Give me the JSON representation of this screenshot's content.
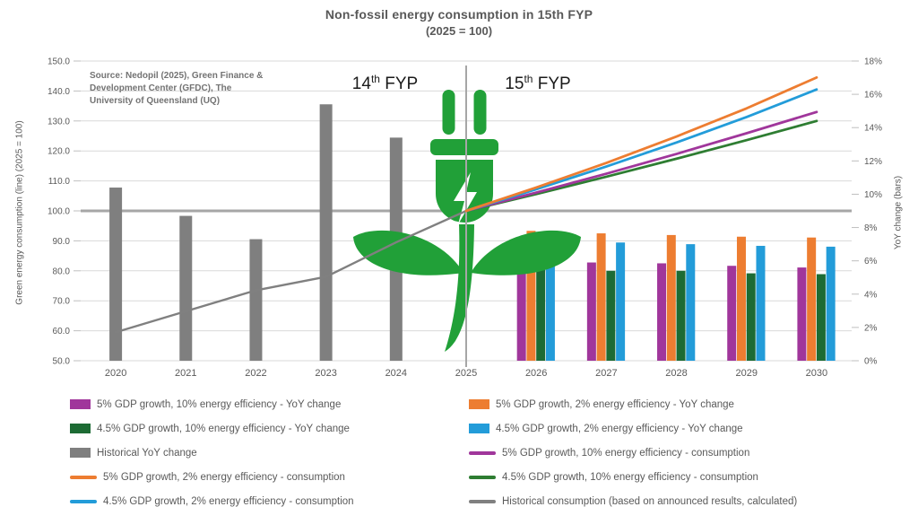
{
  "title": {
    "line1": "Non-fossil energy consumption in 15th FYP",
    "line2": "(2025 = 100)"
  },
  "source": {
    "line1": "Source: Nedopil (2025), Green Finance &",
    "line2": "Development Center (GFDC), The",
    "line3": "University of Queensland (UQ)"
  },
  "period_bands": {
    "left": {
      "num": "14",
      "sup": "th",
      "rest": " FYP"
    },
    "right": {
      "num": "15",
      "sup": "th",
      "rest": " FYP"
    }
  },
  "colors": {
    "purple": "#A0369B",
    "orange": "#ED7D31",
    "green_bar": "#1D6B34",
    "green_line": "#2E7D32",
    "blue": "#239CD9",
    "gray_bar": "#7F7F7F",
    "gray_line": "#808080",
    "grid": "#D9D9D9",
    "grid_emphasis": "#A6A6A6",
    "tick_mark": "#BFBFBF",
    "divider": "#A6A6A6",
    "plug_green": "#21A038",
    "text": "#595959",
    "fyp_text": "#1A1A1A",
    "band_fill": "#FFFFFF"
  },
  "legend": {
    "left": [
      {
        "marker": "square",
        "color": "#A0369B",
        "label": "5% GDP growth, 10% energy efficiency - YoY change"
      },
      {
        "marker": "square",
        "color": "#1D6B34",
        "label": "4.5% GDP growth, 10% energy efficiency  - YoY change"
      },
      {
        "marker": "square",
        "color": "#7F7F7F",
        "label": "Historical YoY change"
      },
      {
        "marker": "line",
        "color": "#ED7D31",
        "label": "5% GDP growth, 2% energy efficiency - consumption"
      },
      {
        "marker": "line",
        "color": "#239CD9",
        "label": "4.5% GDP growth,  2% energy efficiency - consumption"
      }
    ],
    "right": [
      {
        "marker": "square",
        "color": "#ED7D31",
        "label": "5% GDP growth, 2% energy efficiency - YoY change"
      },
      {
        "marker": "square",
        "color": "#239CD9",
        "label": "4.5% GDP growth, 2% energy efficiency - YoY change"
      },
      {
        "marker": "line",
        "color": "#A0369B",
        "label": "5% GDP growth, 10% energy efficiency - consumption"
      },
      {
        "marker": "line",
        "color": "#2E7D32",
        "label": "4.5% GDP growth, 10% energy efficiency - consumption"
      },
      {
        "marker": "line",
        "color": "#808080",
        "label": "Historical consumption (based on announced results, calculated)"
      }
    ]
  },
  "chart_data": {
    "type": "bar+line combo, dual axis",
    "title": "Non-fossil energy consumption in 15th FYP (2025 = 100)",
    "x_categories": [
      "2020",
      "2021",
      "2022",
      "2023",
      "2024",
      "2025",
      "2026",
      "2027",
      "2028",
      "2029",
      "2030"
    ],
    "left_axis": {
      "label": "Green energy consumption (line) (2025 = 100)",
      "range": [
        50,
        150
      ],
      "tick_values": [
        50,
        60,
        70,
        80,
        90,
        100,
        110,
        120,
        130,
        140,
        150
      ],
      "tick_labels": [
        "50.0",
        "60.0",
        "70.0",
        "80.0",
        "90.0",
        "100.0",
        "110.0",
        "120.0",
        "130.0",
        "140.0",
        "150.0"
      ],
      "emphasized_tick": 100
    },
    "right_axis": {
      "label": "YoY change (bars)",
      "range": [
        0,
        18
      ],
      "tick_values": [
        0,
        2,
        4,
        6,
        8,
        10,
        12,
        14,
        16,
        18
      ],
      "tick_labels": [
        "0%",
        "2%",
        "4%",
        "6%",
        "8%",
        "10%",
        "12%",
        "14%",
        "16%",
        "18%"
      ]
    },
    "grid": "horizontal gridlines on",
    "bar_series": [
      {
        "id": "historical-yoy",
        "name": "Historical YoY change",
        "axis": "right",
        "color": "#7F7F7F",
        "slot": null,
        "values": [
          10.4,
          8.7,
          7.3,
          15.4,
          13.4,
          null,
          null,
          null,
          null,
          null,
          null
        ]
      },
      {
        "id": "gdp5-eff10-yoy",
        "name": "5% GDP growth, 10% energy efficiency - YoY change",
        "axis": "right",
        "color": "#A0369B",
        "slot": 0,
        "values": [
          null,
          null,
          null,
          null,
          null,
          null,
          6.1,
          5.9,
          5.85,
          5.7,
          5.6
        ]
      },
      {
        "id": "gdp5-eff2-yoy",
        "name": "5% GDP growth, 2% energy efficiency - YoY change",
        "axis": "right",
        "color": "#ED7D31",
        "slot": 1,
        "values": [
          null,
          null,
          null,
          null,
          null,
          null,
          7.8,
          7.65,
          7.55,
          7.45,
          7.4
        ]
      },
      {
        "id": "gdp45-eff10-yoy",
        "name": "4.5% GDP growth, 10% energy efficiency - YoY change",
        "axis": "right",
        "color": "#1D6B34",
        "slot": 2,
        "values": [
          null,
          null,
          null,
          null,
          null,
          null,
          5.55,
          5.4,
          5.4,
          5.25,
          5.2
        ]
      },
      {
        "id": "gdp45-eff2-yoy",
        "name": "4.5% GDP growth, 2% energy efficiency - YoY change",
        "axis": "right",
        "color": "#239CD9",
        "slot": 3,
        "values": [
          null,
          null,
          null,
          null,
          null,
          null,
          7.2,
          7.1,
          7.0,
          6.9,
          6.85
        ]
      }
    ],
    "line_series": [
      {
        "id": "historical-consumption",
        "name": "Historical consumption (based on announced results, calculated)",
        "axis": "left",
        "color": "#808080",
        "width": 2.4,
        "layer": "back",
        "values": [
          59.5,
          66.5,
          73.5,
          78.0,
          89.5,
          100,
          null,
          null,
          null,
          null,
          null
        ]
      },
      {
        "id": "gdp45-eff10-consumption",
        "name": "4.5% GDP growth, 10% energy efficiency - consumption",
        "axis": "left",
        "color": "#2E7D32",
        "width": 2.8,
        "layer": "front",
        "values": [
          null,
          null,
          null,
          null,
          null,
          100,
          105.6,
          111.4,
          117.4,
          123.6,
          130.0
        ]
      },
      {
        "id": "gdp5-eff10-consumption",
        "name": "5% GDP growth, 10% energy efficiency - consumption",
        "axis": "left",
        "color": "#A0369B",
        "width": 2.8,
        "layer": "front",
        "values": [
          null,
          null,
          null,
          null,
          null,
          100,
          106.1,
          112.4,
          119.0,
          125.9,
          133.0
        ]
      },
      {
        "id": "gdp45-eff2-consumption",
        "name": "4.5% GDP growth,  2% energy efficiency - consumption",
        "axis": "left",
        "color": "#239CD9",
        "width": 2.8,
        "layer": "front",
        "values": [
          null,
          null,
          null,
          null,
          null,
          100,
          107.2,
          114.8,
          122.8,
          131.3,
          140.5
        ]
      },
      {
        "id": "gdp5-eff2-consumption",
        "name": "5% GDP growth, 2% energy efficiency - consumption",
        "axis": "left",
        "color": "#ED7D31",
        "width": 2.8,
        "layer": "front",
        "values": [
          null,
          null,
          null,
          null,
          null,
          100,
          107.8,
          116.0,
          124.8,
          134.2,
          144.5
        ]
      }
    ],
    "annotations": [
      "14th FYP label over 2023-2024",
      "15th FYP label over 2025-2027",
      "white highlight band 2023-2026",
      "green plug-plant icon at 2025",
      "vertical divider line at 2025"
    ],
    "legend_position": "bottom, two columns"
  }
}
